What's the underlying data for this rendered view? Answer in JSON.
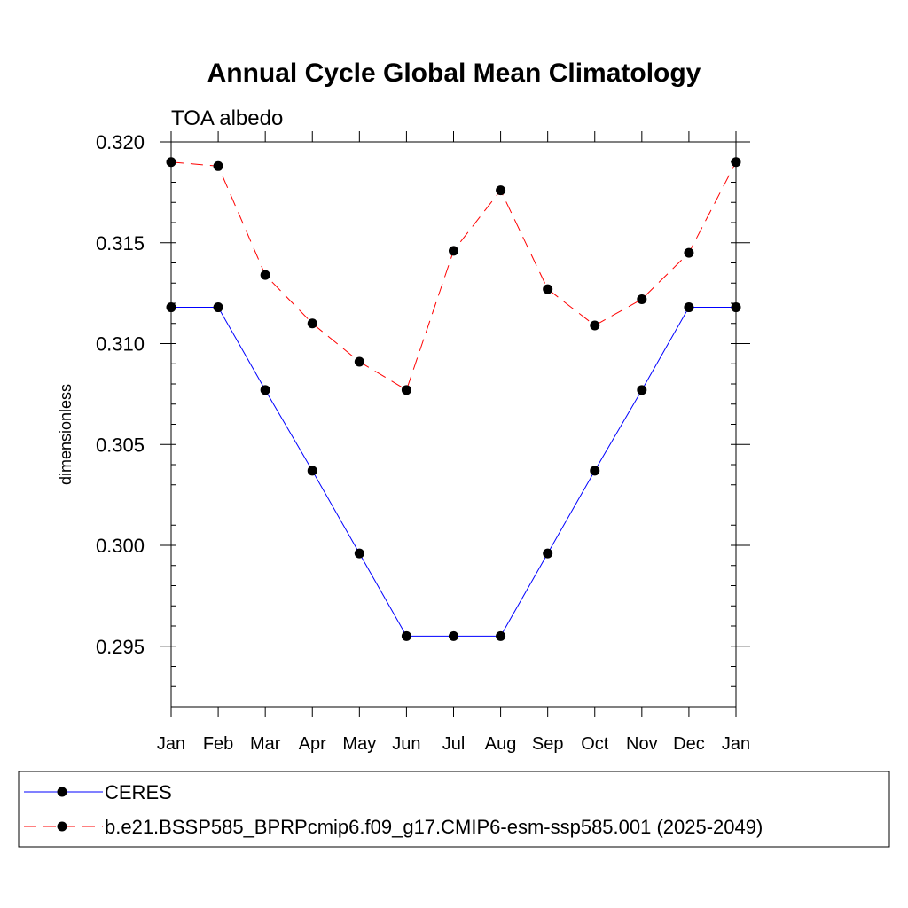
{
  "chart_data": {
    "type": "line",
    "title": "Annual Cycle Global Mean Climatology",
    "subtitle": "TOA albedo",
    "xlabel": "",
    "ylabel": "dimensionless",
    "categories": [
      "Jan",
      "Feb",
      "Mar",
      "Apr",
      "May",
      "Jun",
      "Jul",
      "Aug",
      "Sep",
      "Oct",
      "Nov",
      "Dec",
      "Jan"
    ],
    "ylim": [
      0.292,
      0.32
    ],
    "yticks": [
      0.295,
      0.3,
      0.305,
      0.31,
      0.315,
      0.32
    ],
    "ytick_labels": [
      "0.295",
      "0.300",
      "0.305",
      "0.310",
      "0.315",
      "0.320"
    ],
    "y_minor_step": 0.001,
    "grid": false,
    "legend_position": "bottom",
    "series": [
      {
        "name": "CERES",
        "color": "#0000ff",
        "dash": "solid",
        "values": [
          0.3118,
          0.3118,
          0.3077,
          0.3037,
          0.2996,
          0.2955,
          0.2955,
          0.2955,
          0.2996,
          0.3037,
          0.3077,
          0.3118,
          0.3118
        ]
      },
      {
        "name": "b.e21.BSSP585_BPRPcmip6.f09_g17.CMIP6-esm-ssp585.001 (2025-2049)",
        "color": "#ff0000",
        "dash": "dashed",
        "values": [
          0.319,
          0.3188,
          0.3134,
          0.311,
          0.3091,
          0.3077,
          0.3146,
          0.3176,
          0.3127,
          0.3109,
          0.3122,
          0.3145,
          0.319
        ]
      }
    ]
  }
}
